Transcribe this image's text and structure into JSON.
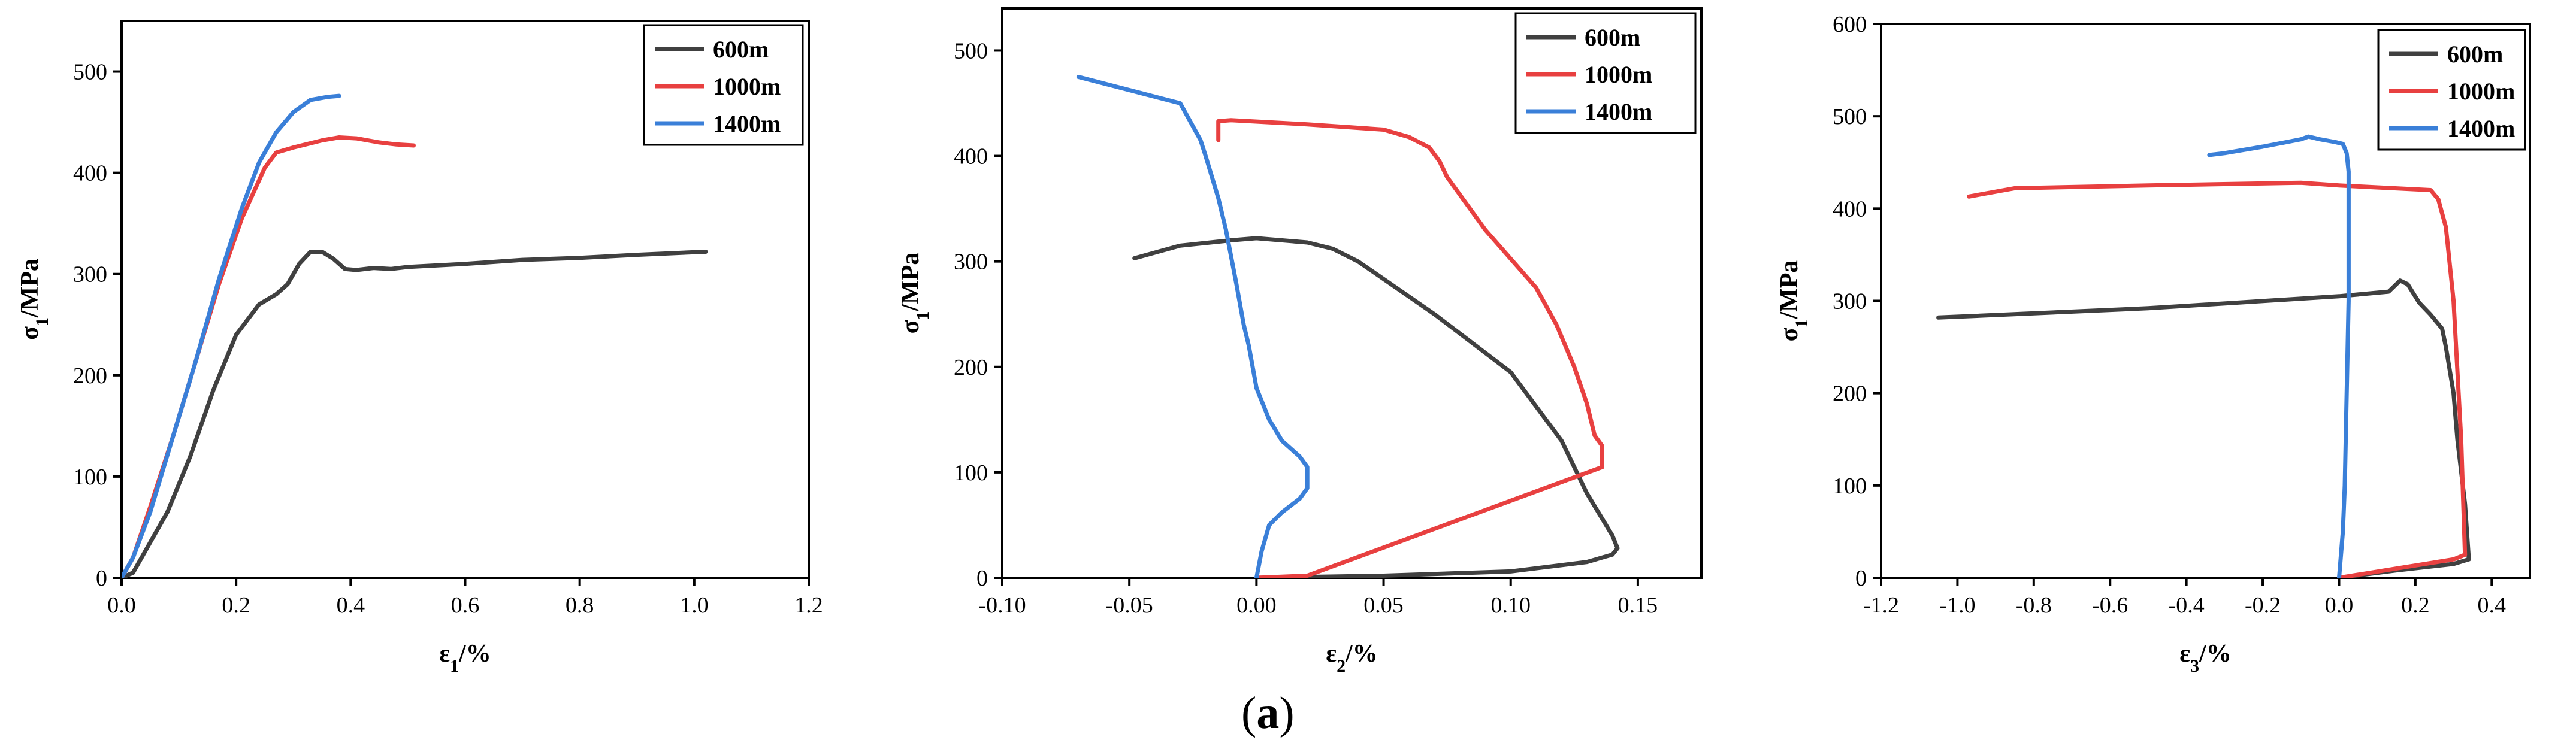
{
  "caption": {
    "open": "(",
    "letter": "a",
    "close": ")"
  },
  "chart_data": [
    {
      "type": "line",
      "xlabel": "ε1/%",
      "ylabel": "σ1/MPa",
      "xlim": [
        0,
        1.2
      ],
      "ylim": [
        0,
        550
      ],
      "xticks": [
        0.0,
        0.2,
        0.4,
        0.6,
        0.8,
        1.0,
        1.2
      ],
      "xtick_labels": [
        "0.0",
        "0.2",
        "0.4",
        "0.6",
        "0.8",
        "1.0",
        "1.2"
      ],
      "yticks": [
        0,
        100,
        200,
        300,
        400,
        500
      ],
      "ytick_labels": [
        "0",
        "100",
        "200",
        "300",
        "400",
        "500"
      ],
      "legend_position": "top-right",
      "series": [
        {
          "name": "600m",
          "color": "#404040",
          "points": [
            [
              0,
              0
            ],
            [
              0.02,
              5
            ],
            [
              0.05,
              35
            ],
            [
              0.08,
              65
            ],
            [
              0.12,
              120
            ],
            [
              0.16,
              185
            ],
            [
              0.2,
              240
            ],
            [
              0.24,
              270
            ],
            [
              0.27,
              280
            ],
            [
              0.29,
              290
            ],
            [
              0.31,
              310
            ],
            [
              0.33,
              322
            ],
            [
              0.35,
              322
            ],
            [
              0.37,
              315
            ],
            [
              0.39,
              305
            ],
            [
              0.41,
              304
            ],
            [
              0.44,
              306
            ],
            [
              0.47,
              305
            ],
            [
              0.5,
              307
            ],
            [
              0.6,
              310
            ],
            [
              0.7,
              314
            ],
            [
              0.8,
              316
            ],
            [
              0.9,
              319
            ],
            [
              1.02,
              322
            ]
          ]
        },
        {
          "name": "1000m",
          "color": "#e84040",
          "points": [
            [
              0,
              0
            ],
            [
              0.02,
              20
            ],
            [
              0.05,
              70
            ],
            [
              0.09,
              140
            ],
            [
              0.13,
              215
            ],
            [
              0.17,
              290
            ],
            [
              0.21,
              355
            ],
            [
              0.25,
              405
            ],
            [
              0.27,
              420
            ],
            [
              0.3,
              425
            ],
            [
              0.35,
              432
            ],
            [
              0.38,
              435
            ],
            [
              0.41,
              434
            ],
            [
              0.45,
              430
            ],
            [
              0.48,
              428
            ],
            [
              0.51,
              427
            ]
          ]
        },
        {
          "name": "1400m",
          "color": "#3a7fd8",
          "points": [
            [
              0,
              0
            ],
            [
              0.02,
              20
            ],
            [
              0.05,
              65
            ],
            [
              0.09,
              140
            ],
            [
              0.13,
              215
            ],
            [
              0.17,
              295
            ],
            [
              0.21,
              365
            ],
            [
              0.24,
              410
            ],
            [
              0.27,
              440
            ],
            [
              0.3,
              460
            ],
            [
              0.33,
              472
            ],
            [
              0.36,
              475
            ],
            [
              0.38,
              476
            ]
          ]
        }
      ]
    },
    {
      "type": "line",
      "xlabel": "ε2/%",
      "ylabel": "σ1/MPa",
      "xlim": [
        -0.1,
        0.175
      ],
      "ylim": [
        0,
        540
      ],
      "xticks": [
        -0.1,
        -0.05,
        0.0,
        0.05,
        0.1,
        0.15
      ],
      "xtick_labels": [
        "-0.10",
        "-0.05",
        "0.00",
        "0.05",
        "0.10",
        "0.15"
      ],
      "yticks": [
        0,
        100,
        200,
        300,
        400,
        500
      ],
      "ytick_labels": [
        "0",
        "100",
        "200",
        "300",
        "400",
        "500"
      ],
      "legend_position": "top-right",
      "series": [
        {
          "name": "600m",
          "color": "#404040",
          "points": [
            [
              0.0,
              0
            ],
            [
              0.05,
              2
            ],
            [
              0.1,
              6
            ],
            [
              0.13,
              15
            ],
            [
              0.14,
              22
            ],
            [
              0.142,
              28
            ],
            [
              0.14,
              40
            ],
            [
              0.13,
              80
            ],
            [
              0.12,
              130
            ],
            [
              0.1,
              195
            ],
            [
              0.07,
              250
            ],
            [
              0.04,
              300
            ],
            [
              0.03,
              312
            ],
            [
              0.02,
              318
            ],
            [
              0.0,
              322
            ],
            [
              -0.01,
              320
            ],
            [
              -0.03,
              315
            ],
            [
              -0.048,
              303
            ]
          ]
        },
        {
          "name": "1000m",
          "color": "#e84040",
          "points": [
            [
              0.0,
              0
            ],
            [
              0.02,
              2
            ],
            [
              0.136,
              105
            ],
            [
              0.136,
              125
            ],
            [
              0.133,
              135
            ],
            [
              0.13,
              165
            ],
            [
              0.125,
              200
            ],
            [
              0.118,
              240
            ],
            [
              0.11,
              275
            ],
            [
              0.09,
              330
            ],
            [
              0.075,
              380
            ],
            [
              0.072,
              395
            ],
            [
              0.068,
              408
            ],
            [
              0.06,
              418
            ],
            [
              0.05,
              425
            ],
            [
              0.02,
              430
            ],
            [
              -0.01,
              434
            ],
            [
              -0.015,
              433
            ],
            [
              -0.015,
              415
            ]
          ]
        },
        {
          "name": "1400m",
          "color": "#3a7fd8",
          "points": [
            [
              0.0,
              0
            ],
            [
              0.002,
              25
            ],
            [
              0.005,
              50
            ],
            [
              0.01,
              62
            ],
            [
              0.017,
              75
            ],
            [
              0.02,
              85
            ],
            [
              0.02,
              105
            ],
            [
              0.017,
              115
            ],
            [
              0.01,
              130
            ],
            [
              0.005,
              150
            ],
            [
              0.0,
              180
            ],
            [
              -0.003,
              220
            ],
            [
              -0.005,
              240
            ],
            [
              -0.008,
              280
            ],
            [
              -0.012,
              330
            ],
            [
              -0.015,
              360
            ],
            [
              -0.02,
              400
            ],
            [
              -0.022,
              415
            ],
            [
              -0.03,
              450
            ],
            [
              -0.07,
              475
            ]
          ]
        }
      ]
    },
    {
      "type": "line",
      "xlabel": "ε3/%",
      "ylabel": "σ1/MPa",
      "xlim": [
        -1.2,
        0.5
      ],
      "ylim": [
        0,
        600
      ],
      "xticks": [
        -1.2,
        -1.0,
        -0.8,
        -0.6,
        -0.4,
        -0.2,
        0.0,
        0.2,
        0.4
      ],
      "xtick_labels": [
        "-1.2",
        "-1.0",
        "-0.8",
        "-0.6",
        "-0.4",
        "-0.2",
        "0.0",
        "0.2",
        "0.4"
      ],
      "yticks": [
        0,
        100,
        200,
        300,
        400,
        500,
        600
      ],
      "ytick_labels": [
        "0",
        "100",
        "200",
        "300",
        "400",
        "500",
        "600"
      ],
      "legend_position": "top-right",
      "series": [
        {
          "name": "600m",
          "color": "#404040",
          "points": [
            [
              0.0,
              0
            ],
            [
              0.15,
              8
            ],
            [
              0.3,
              15
            ],
            [
              0.34,
              20
            ],
            [
              0.33,
              80
            ],
            [
              0.31,
              150
            ],
            [
              0.3,
              200
            ],
            [
              0.28,
              250
            ],
            [
              0.27,
              270
            ],
            [
              0.24,
              285
            ],
            [
              0.21,
              298
            ],
            [
              0.18,
              318
            ],
            [
              0.16,
              322
            ],
            [
              0.13,
              310
            ],
            [
              0.0,
              305
            ],
            [
              -0.5,
              292
            ],
            [
              -1.05,
              282
            ]
          ]
        },
        {
          "name": "1000m",
          "color": "#e84040",
          "points": [
            [
              0.0,
              0
            ],
            [
              0.15,
              10
            ],
            [
              0.3,
              20
            ],
            [
              0.33,
              25
            ],
            [
              0.32,
              150
            ],
            [
              0.3,
              300
            ],
            [
              0.28,
              380
            ],
            [
              0.26,
              410
            ],
            [
              0.24,
              420
            ],
            [
              0.0,
              425
            ],
            [
              -0.1,
              428
            ],
            [
              -0.5,
              425
            ],
            [
              -0.85,
              422
            ],
            [
              -0.97,
              413
            ]
          ]
        },
        {
          "name": "1400m",
          "color": "#3a7fd8",
          "points": [
            [
              0.0,
              0
            ],
            [
              0.01,
              50
            ],
            [
              0.015,
              100
            ],
            [
              0.02,
              200
            ],
            [
              0.025,
              300
            ],
            [
              0.025,
              400
            ],
            [
              0.025,
              440
            ],
            [
              0.02,
              460
            ],
            [
              0.01,
              470
            ],
            [
              -0.01,
              472
            ],
            [
              -0.05,
              475
            ],
            [
              -0.08,
              478
            ],
            [
              -0.1,
              475
            ],
            [
              -0.2,
              467
            ],
            [
              -0.3,
              460
            ],
            [
              -0.34,
              458
            ]
          ]
        }
      ]
    }
  ]
}
